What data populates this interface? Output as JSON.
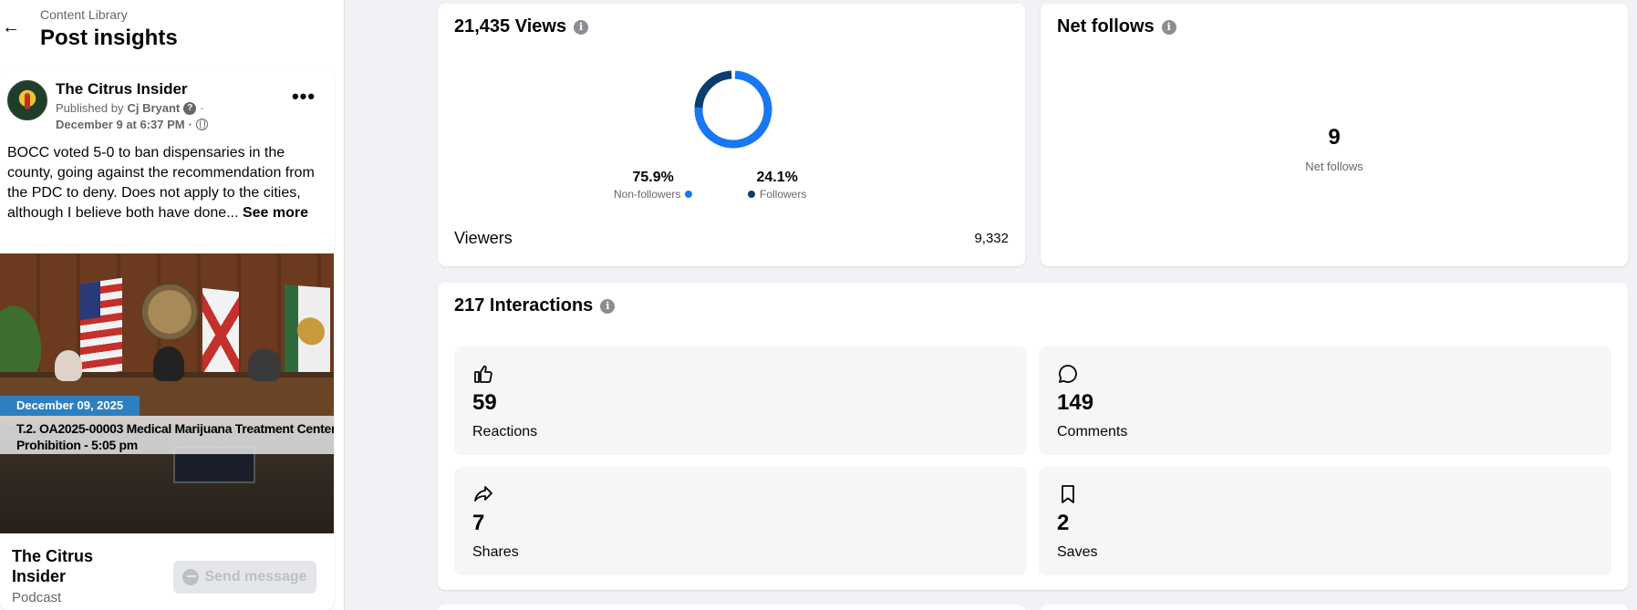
{
  "header": {
    "breadcrumb": "Content Library",
    "title": "Post insights"
  },
  "post": {
    "page_name": "The Citrus Insider",
    "published_prefix": "Published by",
    "author": "Cj Bryant",
    "separator": "·",
    "date": "December 9 at 6:37 PM",
    "text": "BOCC voted 5-0 to ban dispensaries in the county, going against the recommendation from the PDC to deny. Does not apply to the cities, although I believe both have done...",
    "see_more": "See more",
    "video_date": "December 09, 2025",
    "video_caption_line1": "T.2. OA2025-00003 Medical Marijuana Treatment Center",
    "video_caption_line2": "Prohibition - 5:05 pm"
  },
  "footer": {
    "name": "The Citrus Insider",
    "category": "Podcast",
    "send_message": "Send message"
  },
  "views": {
    "title": "21,435 Views",
    "non_followers_pct": "75.9%",
    "non_followers_label": "Non-followers",
    "followers_pct": "24.1%",
    "followers_label": "Followers",
    "non_followers_value": 75.9,
    "followers_value": 24.1,
    "viewers_label": "Viewers",
    "viewers_value": "9,332",
    "colors": {
      "non_followers": "#1877f2",
      "followers": "#0a3d6e"
    }
  },
  "net_follows": {
    "title": "Net follows",
    "value": "9",
    "label": "Net follows"
  },
  "interactions": {
    "title": "217 Interactions",
    "tiles": [
      {
        "icon": "thumbs-up-icon",
        "value": "59",
        "label": "Reactions"
      },
      {
        "icon": "comment-icon",
        "value": "149",
        "label": "Comments"
      },
      {
        "icon": "share-icon",
        "value": "7",
        "label": "Shares"
      },
      {
        "icon": "bookmark-icon",
        "value": "2",
        "label": "Saves"
      }
    ]
  }
}
